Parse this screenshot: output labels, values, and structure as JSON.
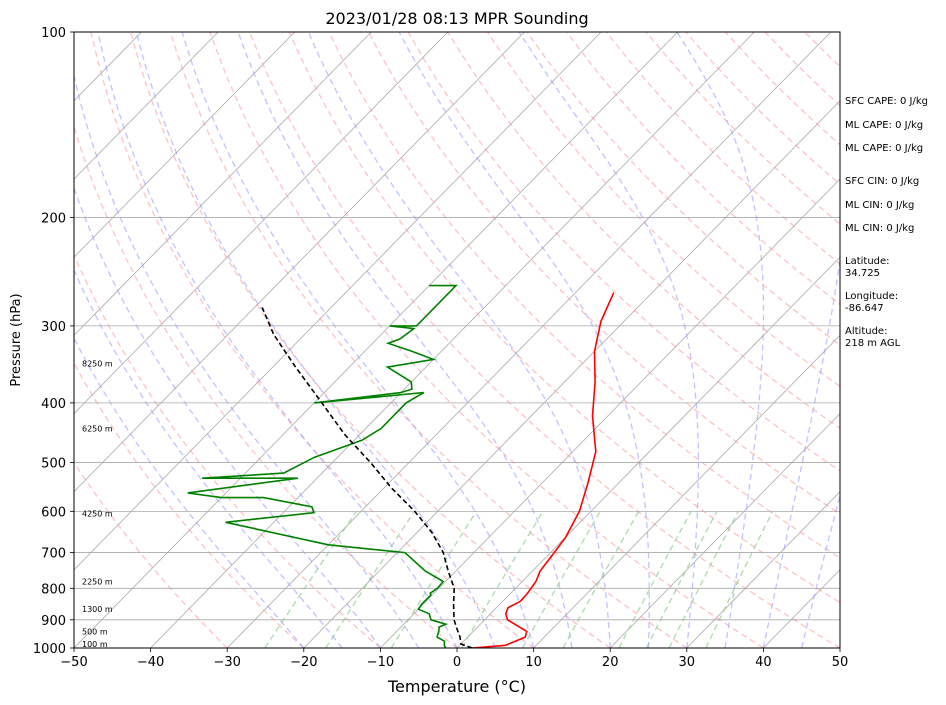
{
  "chart_data": {
    "type": "skew-t",
    "title": "2023/01/28 08:13 MPR Sounding",
    "xlabel": "Temperature (°C)",
    "ylabel": "Pressure (hPa)",
    "xlim": [
      -50,
      50
    ],
    "ylim": [
      1000,
      100
    ],
    "y_scale": "log",
    "grid": true,
    "x_ticks": [
      "−50",
      "−40",
      "−30",
      "−20",
      "−10",
      "0",
      "10",
      "20",
      "30",
      "40",
      "50"
    ],
    "y_ticks": [
      "100",
      "200",
      "300",
      "400",
      "500",
      "600",
      "700",
      "800",
      "900",
      "1000"
    ],
    "height_labels": [
      "8250 m",
      "6250 m",
      "4250 m",
      "2250 m",
      "1300 m",
      "500 m",
      "100 m"
    ],
    "colors": {
      "temperature": "#ff0000",
      "dewpoint": "#008000",
      "parcel": "#000000",
      "dry_adiabats": "#ff9999",
      "moist_adiabats": "#9999ff",
      "mixing_ratio": "#88cc88",
      "isotherms": "#aaaaaa"
    },
    "series": [
      {
        "key": "temperature",
        "points": [
          [
            2,
            1000
          ],
          [
            6,
            990
          ],
          [
            7.5,
            960
          ],
          [
            7,
            940
          ],
          [
            5,
            920
          ],
          [
            3,
            900
          ],
          [
            2,
            880
          ],
          [
            1.5,
            860
          ],
          [
            2.3,
            840
          ],
          [
            2.2,
            815
          ],
          [
            1.8,
            780
          ],
          [
            1,
            750
          ],
          [
            0.5,
            700
          ],
          [
            0,
            660
          ],
          [
            -1.5,
            600
          ],
          [
            -4,
            540
          ],
          [
            -7,
            480
          ],
          [
            -12,
            420
          ],
          [
            -16,
            370
          ],
          [
            -20,
            330
          ],
          [
            -23,
            295
          ],
          [
            -25,
            265
          ]
        ]
      },
      {
        "key": "dewpoint",
        "points": [
          [
            -1.5,
            1000
          ],
          [
            -2,
            990
          ],
          [
            -2.5,
            975
          ],
          [
            -4,
            960
          ],
          [
            -4.5,
            940
          ],
          [
            -5,
            925
          ],
          [
            -4.5,
            915
          ],
          [
            -7,
            900
          ],
          [
            -8,
            880
          ],
          [
            -10,
            865
          ],
          [
            -10.2,
            850
          ],
          [
            -10.2,
            820
          ],
          [
            -10.5,
            815
          ],
          [
            -10.2,
            800
          ],
          [
            -10.3,
            780
          ],
          [
            -14,
            750
          ],
          [
            -19,
            700
          ],
          [
            -30,
            680
          ],
          [
            -46.3,
            625
          ],
          [
            -36,
            603
          ],
          [
            -37,
            590
          ],
          [
            -44.5,
            570
          ],
          [
            -50,
            570
          ],
          [
            -55,
            560
          ],
          [
            -42.5,
            530
          ],
          [
            -55,
            530
          ],
          [
            -45,
            520
          ],
          [
            -43,
            490
          ],
          [
            -39,
            460
          ],
          [
            -38,
            440
          ],
          [
            -38,
            400
          ],
          [
            -37,
            385
          ],
          [
            -50,
            400
          ],
          [
            -40,
            385
          ],
          [
            -39,
            380
          ],
          [
            -40,
            370
          ],
          [
            -45,
            350
          ],
          [
            -40,
            340
          ],
          [
            -43.8,
            330
          ],
          [
            -48,
            320
          ],
          [
            -47,
            315
          ],
          [
            -46.5,
            303
          ],
          [
            -50,
            300
          ],
          [
            -46.5,
            300
          ],
          [
            -46.5,
            258
          ],
          [
            -50,
            258
          ]
        ]
      },
      {
        "key": "parcel",
        "points": [
          [
            2,
            1000
          ],
          [
            0,
            985
          ],
          [
            -1,
            960
          ],
          [
            -2.5,
            930
          ],
          [
            -4,
            900
          ],
          [
            -6,
            850
          ],
          [
            -8,
            800
          ],
          [
            -11,
            750
          ],
          [
            -14,
            700
          ],
          [
            -18,
            650
          ],
          [
            -23,
            600
          ],
          [
            -29,
            550
          ],
          [
            -35,
            500
          ],
          [
            -42,
            450
          ],
          [
            -49,
            400
          ],
          [
            -57,
            350
          ],
          [
            -64,
            310
          ],
          [
            -69,
            280
          ]
        ]
      }
    ]
  },
  "sidebar": {
    "sfc_cape": "SFC CAPE: 0 J/kg",
    "ml_cape_1": "ML CAPE: 0 J/kg",
    "ml_cape_2": "ML CAPE: 0 J/kg",
    "sfc_cin": "SFC CIN: 0 J/kg",
    "ml_cin_1": "ML CIN: 0 J/kg",
    "ml_cin_2": "ML CIN: 0 J/kg",
    "latitude_label": "Latitude:",
    "latitude_value": "34.725",
    "longitude_label": "Longitude:",
    "longitude_value": "-86.647",
    "altitude_label": "Altitude:",
    "altitude_value": "218 m AGL"
  }
}
